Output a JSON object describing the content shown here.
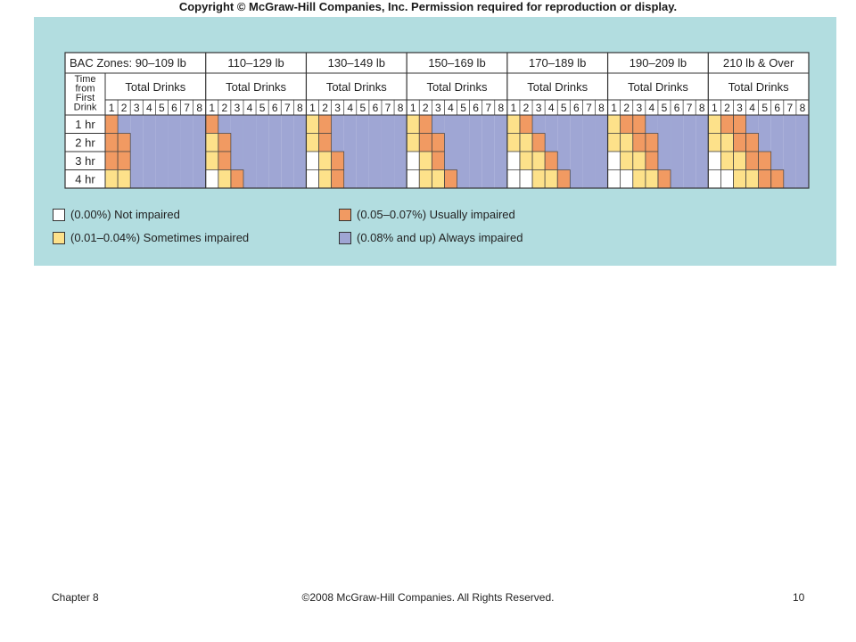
{
  "header": {
    "copyright": "Copyright © McGraw-Hill Companies, Inc.  Permission required for reproduction or display."
  },
  "table": {
    "row_header_lines": [
      "Time",
      "from",
      "First",
      "Drink"
    ],
    "zone_prefix": "BAC Zones: ",
    "subheader": "Total Drinks",
    "drinks": [
      "1",
      "2",
      "3",
      "4",
      "5",
      "6",
      "7",
      "8"
    ],
    "rows": [
      "1 hr",
      "2 hr",
      "3 hr",
      "4 hr"
    ],
    "zones": [
      {
        "label": "90–109 lb",
        "cells": [
          [
            2,
            3,
            3,
            3,
            3,
            3,
            3,
            3
          ],
          [
            2,
            2,
            3,
            3,
            3,
            3,
            3,
            3
          ],
          [
            2,
            2,
            3,
            3,
            3,
            3,
            3,
            3
          ],
          [
            1,
            1,
            3,
            3,
            3,
            3,
            3,
            3
          ]
        ]
      },
      {
        "label": "110–129 lb",
        "cells": [
          [
            2,
            3,
            3,
            3,
            3,
            3,
            3,
            3
          ],
          [
            1,
            2,
            3,
            3,
            3,
            3,
            3,
            3
          ],
          [
            1,
            2,
            3,
            3,
            3,
            3,
            3,
            3
          ],
          [
            0,
            1,
            2,
            3,
            3,
            3,
            3,
            3
          ]
        ]
      },
      {
        "label": "130–149 lb",
        "cells": [
          [
            1,
            2,
            3,
            3,
            3,
            3,
            3,
            3
          ],
          [
            1,
            2,
            3,
            3,
            3,
            3,
            3,
            3
          ],
          [
            0,
            1,
            2,
            3,
            3,
            3,
            3,
            3
          ],
          [
            0,
            1,
            2,
            3,
            3,
            3,
            3,
            3
          ]
        ]
      },
      {
        "label": "150–169 lb",
        "cells": [
          [
            1,
            2,
            3,
            3,
            3,
            3,
            3,
            3
          ],
          [
            1,
            2,
            2,
            3,
            3,
            3,
            3,
            3
          ],
          [
            0,
            1,
            2,
            3,
            3,
            3,
            3,
            3
          ],
          [
            0,
            1,
            1,
            2,
            3,
            3,
            3,
            3
          ]
        ]
      },
      {
        "label": "170–189 lb",
        "cells": [
          [
            1,
            2,
            3,
            3,
            3,
            3,
            3,
            3
          ],
          [
            1,
            1,
            2,
            3,
            3,
            3,
            3,
            3
          ],
          [
            0,
            1,
            1,
            2,
            3,
            3,
            3,
            3
          ],
          [
            0,
            0,
            1,
            1,
            2,
            3,
            3,
            3
          ]
        ]
      },
      {
        "label": "190–209 lb",
        "cells": [
          [
            1,
            2,
            2,
            3,
            3,
            3,
            3,
            3
          ],
          [
            1,
            1,
            2,
            2,
            3,
            3,
            3,
            3
          ],
          [
            0,
            1,
            1,
            2,
            3,
            3,
            3,
            3
          ],
          [
            0,
            0,
            1,
            1,
            2,
            3,
            3,
            3
          ]
        ]
      },
      {
        "label": "210 lb  & Over",
        "cells": [
          [
            1,
            2,
            2,
            3,
            3,
            3,
            3,
            3
          ],
          [
            1,
            1,
            2,
            2,
            3,
            3,
            3,
            3
          ],
          [
            0,
            1,
            1,
            2,
            2,
            3,
            3,
            3
          ],
          [
            0,
            0,
            1,
            1,
            2,
            2,
            3,
            3
          ]
        ]
      }
    ]
  },
  "legend": [
    {
      "label": "(0.00%) Not impaired",
      "color": "#ffffff"
    },
    {
      "label": "(0.01–0.04%) Sometimes impaired",
      "color": "#fde18a"
    },
    {
      "label": "(0.05–0.07%) Usually impaired",
      "color": "#f19a62"
    },
    {
      "label": "(0.08% and up) Always impaired",
      "color": "#9fa6d4"
    }
  ],
  "footer": {
    "chapter": "Chapter 8",
    "rights": "©2008 McGraw-Hill Companies. All Rights Reserved.",
    "page_number": "10"
  }
}
